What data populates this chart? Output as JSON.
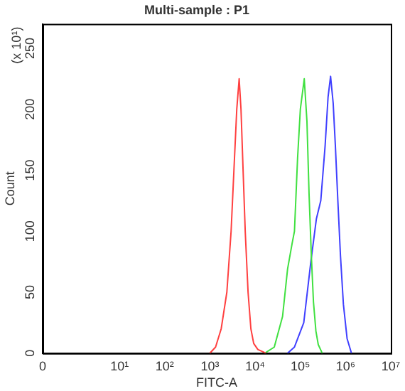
{
  "chart_data": {
    "type": "line",
    "title": "Multi-sample : P1",
    "xlabel": "FITC-A",
    "ylabel": "Count",
    "annotations": [
      "(x 10¹)"
    ],
    "log": "x",
    "grid": false,
    "legend": false,
    "marker": "none",
    "line_style": "solid",
    "xlim": [
      0.2,
      10000000
    ],
    "xticks": [
      {
        "value": 0.2,
        "label": "0"
      },
      {
        "value": 10,
        "label": "10¹"
      },
      {
        "value": 100,
        "label": "10²"
      },
      {
        "value": 1000,
        "label": "10³"
      },
      {
        "value": 10000,
        "label": "10⁴"
      },
      {
        "value": 100000,
        "label": "10⁵"
      },
      {
        "value": 1000000,
        "label": "10⁶"
      },
      {
        "value": 10000000,
        "label": "10⁷"
      }
    ],
    "ylim": [
      0,
      270
    ],
    "yticks": [
      0,
      50,
      100,
      150,
      200,
      250
    ],
    "series": [
      {
        "color": "#ff4040",
        "x": [
          1000,
          1334,
          1778,
          2371,
          2943,
          3398,
          3926,
          4436,
          4870,
          5420,
          6040,
          6980,
          8060,
          9300,
          11500,
          17500
        ],
        "values": [
          0,
          5,
          20,
          50,
          100,
          150,
          200,
          225,
          200,
          150,
          100,
          50,
          20,
          8,
          3,
          0
        ]
      },
      {
        "color": "#40e040",
        "x": [
          16300,
          26500,
          40400,
          52200,
          65800,
          74100,
          86900,
          100000,
          122000,
          140000,
          156000,
          175000,
          195000,
          221000,
          249000,
          305000
        ],
        "values": [
          0,
          5,
          30,
          69,
          90,
          100,
          160,
          200,
          225,
          190,
          130,
          80,
          42,
          18,
          7,
          0
        ]
      },
      {
        "color": "#4040ff",
        "x": [
          52200,
          74100,
          119000,
          172000,
          226000,
          283000,
          353000,
          410000,
          466000,
          532000,
          595000,
          675000,
          771000,
          896000,
          1080000,
          1350000
        ],
        "values": [
          0,
          5,
          25,
          76,
          110,
          125,
          170,
          210,
          227,
          205,
          170,
          125,
          80,
          40,
          12,
          0
        ]
      }
    ]
  }
}
